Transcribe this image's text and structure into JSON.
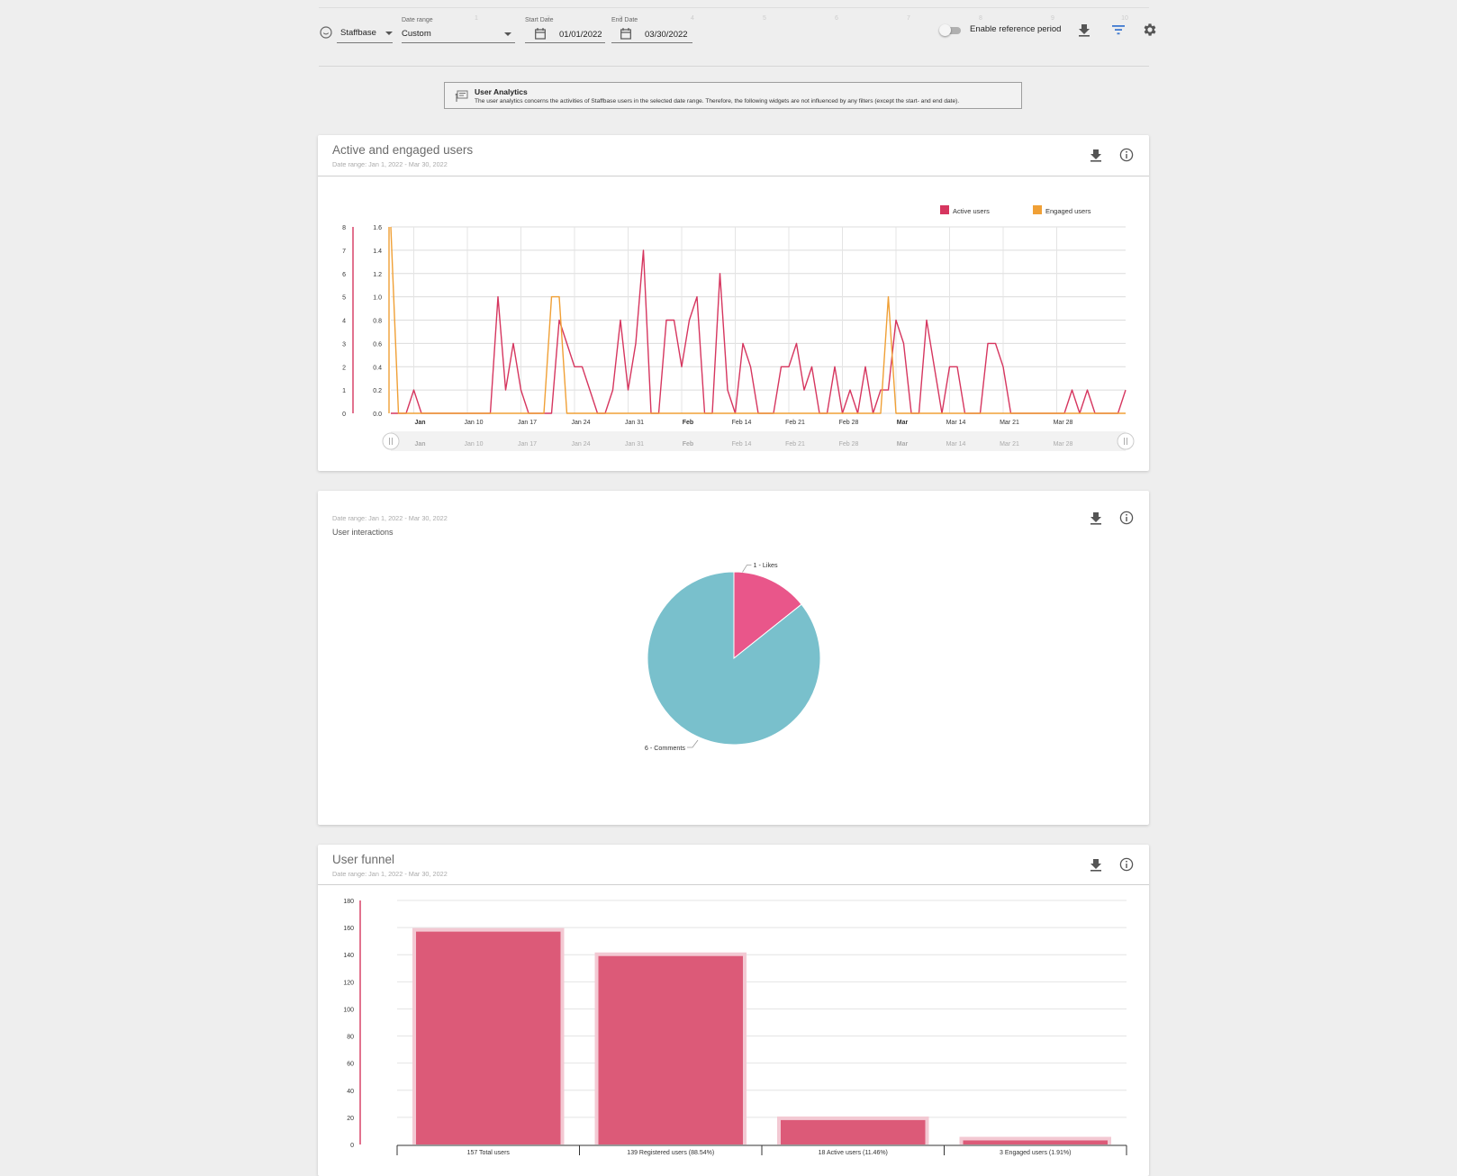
{
  "toolbar": {
    "top_axis_ticks": [
      "1",
      "2",
      "3",
      "4",
      "5",
      "6",
      "7",
      "8",
      "9",
      "10"
    ],
    "tenant": "Staffbase",
    "date_range_label": "Date range",
    "date_range_value": "Custom",
    "start_date_label": "Start Date",
    "start_date_value": "01/01/2022",
    "end_date_label": "End Date",
    "end_date_value": "03/30/2022",
    "reference_toggle_label": "Enable reference period",
    "reference_toggle_on": false
  },
  "notice": {
    "title": "User Analytics",
    "text": "The user analytics concerns the activities of Staffbase users in the selected date range. Therefore, the following widgets are not influenced by any filters (except the start- and end date)."
  },
  "colors": {
    "active": "#d6365f",
    "engaged": "#f0a036",
    "pie_comments": "#79c0cc",
    "pie_likes": "#e9568a",
    "bar": "#dc5a78",
    "bar_halo": "#f3c9d3"
  },
  "active_card": {
    "title": "Active and engaged users",
    "date_range": "Date range: Jan 1, 2022 - Mar 30, 2022"
  },
  "interactions_card": {
    "date_range": "Date range: Jan 1, 2022 - Mar 30, 2022",
    "title": "User interactions"
  },
  "funnel_card": {
    "title": "User funnel",
    "date_range": "Date range: Jan 1, 2022 - Mar 30, 2022"
  },
  "chart_data": [
    {
      "type": "line",
      "legend": [
        "Active users",
        "Engaged users"
      ],
      "legend_position": "top-right",
      "grid": true,
      "x_tick_labels": [
        "Jan",
        "Jan 10",
        "Jan 17",
        "Jan 24",
        "Jan 31",
        "Feb",
        "Feb 14",
        "Feb 21",
        "Feb 28",
        "Mar",
        "Mar 14",
        "Mar 21",
        "Mar 28"
      ],
      "navigator_labels": [
        "Jan",
        "Jan 10",
        "Jan 17",
        "Jan 24",
        "Jan 31",
        "Feb",
        "Feb 14",
        "Feb 21",
        "Feb 28",
        "Mar",
        "Mar 14",
        "Mar 21",
        "Mar 28"
      ],
      "y_left_ticks": [
        "0",
        "1",
        "2",
        "3",
        "4",
        "5",
        "6",
        "7",
        "8"
      ],
      "y_right_ticks": [
        "0.0",
        "0.2",
        "0.4",
        "0.6",
        "0.8",
        "1.0",
        "1.2",
        "1.4",
        "1.6"
      ],
      "ylim_active": [
        0,
        8
      ],
      "ylim_engaged": [
        0,
        1.6
      ],
      "x_start": "2021-12-29",
      "series": [
        {
          "name": "Active users",
          "axis": "left",
          "values": [
            0,
            0,
            0,
            1,
            0,
            0,
            0,
            0,
            0,
            0,
            0,
            0,
            0,
            0,
            5,
            1,
            3,
            1,
            0,
            0,
            0,
            0,
            4,
            3,
            2,
            2,
            1,
            0,
            0,
            1,
            4,
            1,
            3,
            7,
            0,
            0,
            4,
            4,
            2,
            4,
            5,
            0,
            0,
            6,
            1,
            0,
            3,
            2,
            0,
            0,
            0,
            2,
            2,
            3,
            1,
            2,
            0,
            0,
            2,
            0,
            1,
            0,
            2,
            0,
            1,
            1,
            4,
            3,
            0,
            0,
            4,
            2,
            0,
            2,
            2,
            0,
            0,
            0,
            3,
            3,
            2,
            0,
            0,
            0,
            0,
            0,
            0,
            0,
            0,
            1,
            0,
            1,
            0,
            0,
            0,
            0,
            1
          ]
        },
        {
          "name": "Engaged users",
          "axis": "right",
          "values": [
            1.6,
            0,
            0,
            0,
            0,
            0,
            0,
            0,
            0,
            0,
            0,
            0,
            0,
            0,
            0,
            0,
            0,
            0,
            0,
            0,
            0,
            1,
            1,
            0,
            0,
            0,
            0,
            0,
            0,
            0,
            0,
            0,
            0,
            0,
            0,
            0,
            0,
            0,
            0,
            0,
            0,
            0,
            0,
            0,
            0,
            0,
            0,
            0,
            0,
            0,
            0,
            0,
            0,
            0,
            0,
            0,
            0,
            0,
            0,
            0,
            0,
            0,
            0,
            0,
            0,
            1,
            0,
            0,
            0,
            0,
            0,
            0,
            0,
            0,
            0,
            0,
            0,
            0,
            0,
            0,
            0,
            0,
            0,
            0,
            0,
            0,
            0,
            0,
            0,
            0,
            0,
            0,
            0,
            0,
            0,
            0,
            0
          ]
        }
      ]
    },
    {
      "type": "pie",
      "labels": [
        "Likes",
        "Comments"
      ],
      "values": [
        1,
        6
      ],
      "slice_labels": [
        "1 - Likes",
        "6 - Comments"
      ]
    },
    {
      "type": "bar",
      "categories": [
        "157 Total users",
        "139 Registered users (88.54%)",
        "18 Active users (11.46%)",
        "3 Engaged users (1.91%)"
      ],
      "values": [
        157,
        139,
        18,
        3
      ],
      "ylim": [
        0,
        180
      ],
      "y_ticks": [
        "0",
        "20",
        "40",
        "60",
        "80",
        "100",
        "120",
        "140",
        "160",
        "180"
      ],
      "grid": true
    }
  ]
}
